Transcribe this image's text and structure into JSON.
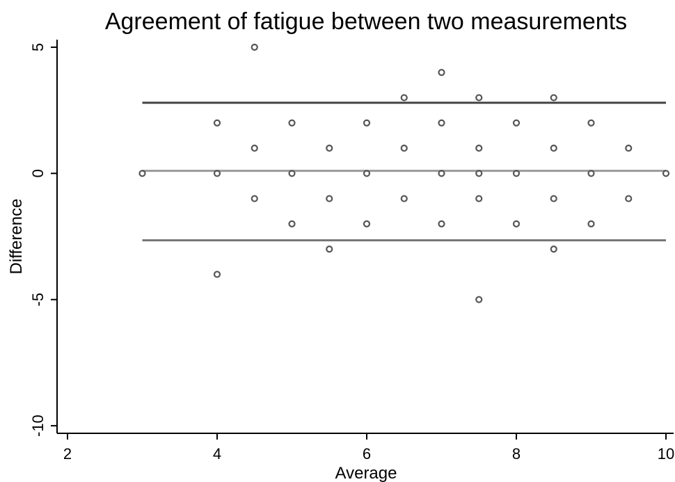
{
  "chart_data": {
    "type": "scatter",
    "title": "Agreement of fatigue between two measurements",
    "xlabel": "Average",
    "ylabel": "Difference",
    "xlim": [
      2,
      10
    ],
    "ylim": [
      -10.3,
      5.3
    ],
    "xticks": [
      2,
      4,
      6,
      8,
      10
    ],
    "xtick_labels": [
      "2",
      "4",
      "6",
      "8",
      "10"
    ],
    "yticks": [
      -10,
      -5,
      0,
      5
    ],
    "ytick_labels": [
      "-10",
      "-5",
      "0",
      "5"
    ],
    "grid": false,
    "legend": "none",
    "points": [
      {
        "x": 3,
        "y": 0
      },
      {
        "x": 4,
        "y": 2
      },
      {
        "x": 4,
        "y": 0
      },
      {
        "x": 4,
        "y": -4
      },
      {
        "x": 4.5,
        "y": 5
      },
      {
        "x": 4.5,
        "y": 1
      },
      {
        "x": 4.5,
        "y": -1
      },
      {
        "x": 5,
        "y": 2
      },
      {
        "x": 5,
        "y": 0
      },
      {
        "x": 5,
        "y": -2
      },
      {
        "x": 5.5,
        "y": 1
      },
      {
        "x": 5.5,
        "y": -1
      },
      {
        "x": 5.5,
        "y": -3
      },
      {
        "x": 6,
        "y": 2
      },
      {
        "x": 6,
        "y": 0
      },
      {
        "x": 6,
        "y": -2
      },
      {
        "x": 6.5,
        "y": 3
      },
      {
        "x": 6.5,
        "y": 1
      },
      {
        "x": 6.5,
        "y": -1
      },
      {
        "x": 7,
        "y": 4
      },
      {
        "x": 7,
        "y": 2
      },
      {
        "x": 7,
        "y": 0
      },
      {
        "x": 7,
        "y": -2
      },
      {
        "x": 7.5,
        "y": 3
      },
      {
        "x": 7.5,
        "y": 1
      },
      {
        "x": 7.5,
        "y": 0
      },
      {
        "x": 7.5,
        "y": -1
      },
      {
        "x": 7.5,
        "y": -5
      },
      {
        "x": 8,
        "y": 2
      },
      {
        "x": 8,
        "y": 0
      },
      {
        "x": 8,
        "y": -2
      },
      {
        "x": 8.5,
        "y": 3
      },
      {
        "x": 8.5,
        "y": 1
      },
      {
        "x": 8.5,
        "y": -1
      },
      {
        "x": 8.5,
        "y": -3
      },
      {
        "x": 9,
        "y": 2
      },
      {
        "x": 9,
        "y": 0
      },
      {
        "x": 9,
        "y": -2
      },
      {
        "x": 9.5,
        "y": 1
      },
      {
        "x": 9.5,
        "y": -1
      },
      {
        "x": 10,
        "y": 0
      }
    ],
    "reference_lines": [
      {
        "role": "upper-limit",
        "y": 2.8,
        "x_range": [
          3,
          10
        ],
        "color": "#444444"
      },
      {
        "role": "mean-difference",
        "y": 0.1,
        "x_range": [
          3,
          10
        ],
        "color": "#999999"
      },
      {
        "role": "lower-limit",
        "y": -2.65,
        "x_range": [
          3,
          10
        ],
        "color": "#777777"
      }
    ],
    "marker_color": "#555555"
  }
}
